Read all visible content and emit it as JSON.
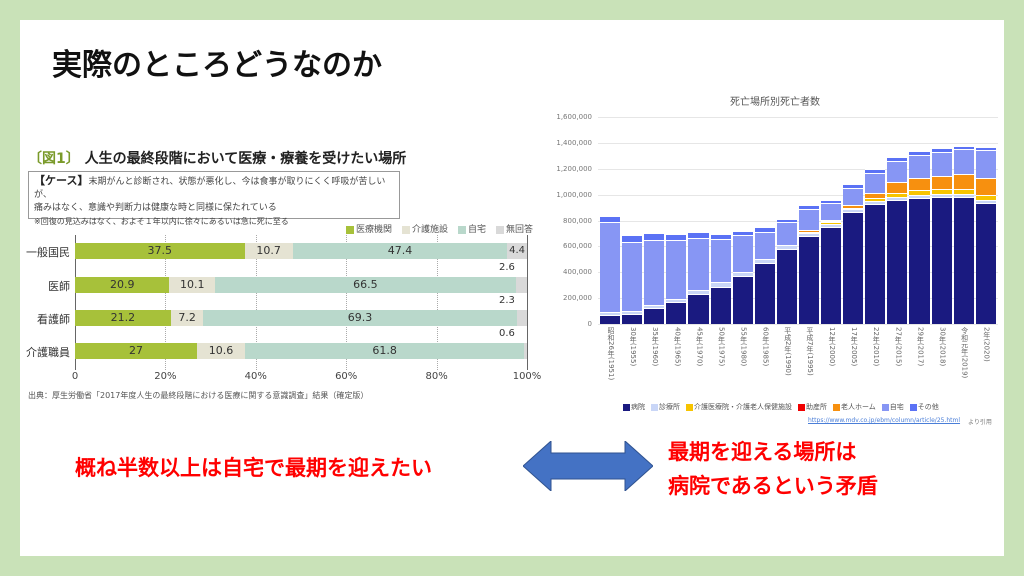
{
  "title": "実際のところどうなのか",
  "left_chart": {
    "fig": "〔図1〕",
    "title": "人生の最終段階において医療・療養を受けたい場所",
    "case_label": "【ケース】",
    "case_text1": "末期がんと診断され、状態が悪化し、今は食事が取りにくく呼吸が苦しいが、",
    "case_text2": "痛みはなく、意識や判断力は健康な時と同様に保たれている",
    "case_note": "※回復の見込みはなく、およそ１年以内に徐々にあるいは急に死に至る",
    "source": "出典：厚生労働省「2017年度人生の最終段階における医療に関する意識調査」結果（確定版）",
    "chart_data": {
      "type": "bar",
      "orientation": "horizontal",
      "stacked": true,
      "categories": [
        "一般国民",
        "医師",
        "看護師",
        "介護職員"
      ],
      "series": [
        {
          "name": "医療機関",
          "color": "#a7c13a",
          "values": [
            37.5,
            20.9,
            21.2,
            27.0
          ]
        },
        {
          "name": "介護施設",
          "color": "#e5e3d3",
          "values": [
            10.7,
            10.1,
            7.2,
            10.6
          ]
        },
        {
          "name": "自宅",
          "color": "#b9d8cb",
          "values": [
            47.4,
            66.5,
            69.3,
            61.8
          ]
        },
        {
          "name": "無回答",
          "color": "#d9d9d9",
          "values": [
            4.4,
            2.6,
            2.3,
            0.6
          ]
        }
      ],
      "xticks": [
        "0",
        "20%",
        "40%",
        "60%",
        "80%",
        "100%"
      ],
      "xlim": [
        0,
        100
      ]
    }
  },
  "right_chart": {
    "chart_data": {
      "type": "bar",
      "stacked": true,
      "title": "死亡場所別死亡者数",
      "ylim": [
        0,
        1600000
      ],
      "yticks": [
        "0",
        "200,000",
        "400,000",
        "600,000",
        "800,000",
        "1,000,000",
        "1,200,000",
        "1,400,000",
        "1,600,000"
      ],
      "categories": [
        "昭和26年(1951)",
        "30年(1955)",
        "35年(1960)",
        "40年(1965)",
        "45年(1970)",
        "50年(1975)",
        "55年(1980)",
        "60年(1985)",
        "平成2年(1990)",
        "平成7年(1995)",
        "12年(2000)",
        "17年(2005)",
        "22年(2010)",
        "27年(2015)",
        "29年(2017)",
        "30年(2018)",
        "令和元年(2019)",
        "2年(2020)"
      ],
      "series": [
        {
          "name": "病院",
          "color": "#1a1a80",
          "values": [
            69000,
            79000,
            121000,
            169000,
            231000,
            287000,
            372000,
            469000,
            582000,
            679000,
            749000,
            862000,
            928000,
            962000,
            977000,
            979000,
            985000,
            933000
          ]
        },
        {
          "name": "診療所",
          "color": "#c9d6f7",
          "values": [
            26000,
            24000,
            25000,
            23000,
            31000,
            34000,
            33000,
            31000,
            31000,
            26000,
            25000,
            28000,
            26000,
            23000,
            23000,
            24000,
            20000,
            26000
          ]
        },
        {
          "name": "介護医療院・介護老人保健施設",
          "color": "#f7c400",
          "values": [
            0,
            0,
            0,
            0,
            0,
            0,
            0,
            0,
            0,
            5000,
            11000,
            10000,
            18000,
            28000,
            33000,
            38000,
            41000,
            41000
          ]
        },
        {
          "name": "助産所",
          "color": "#f00000",
          "values": [
            0,
            0,
            0,
            0,
            0,
            0,
            0,
            0,
            0,
            0,
            0,
            0,
            0,
            0,
            0,
            0,
            0,
            0
          ]
        },
        {
          "name": "老人ホーム",
          "color": "#f7900f",
          "values": [
            0,
            0,
            0,
            0,
            0,
            0,
            0,
            0,
            0,
            13000,
            15000,
            21000,
            43000,
            82000,
            98000,
            105000,
            113000,
            126000
          ]
        },
        {
          "name": "自宅",
          "color": "#8796f4",
          "values": [
            692000,
            533000,
            505000,
            459000,
            405000,
            338000,
            280000,
            213000,
            179000,
            169000,
            133000,
            130000,
            152000,
            164000,
            179000,
            185000,
            190000,
            218000
          ]
        },
        {
          "name": "その他",
          "color": "#5b72f5",
          "values": [
            46000,
            54000,
            52000,
            46000,
            41000,
            38000,
            36000,
            36000,
            23000,
            26000,
            26000,
            28000,
            28000,
            28000,
            26000,
            28000,
            28000,
            25000
          ]
        }
      ]
    },
    "source_url": "https://www.mdv.co.jp/ebm/column/article/25.html",
    "source_suffix": "より引用"
  },
  "message_left": "概ね半数以上は自宅で最期を迎えたい",
  "message_right_1": "最期を迎える場所は",
  "message_right_2": "病院であるという矛盾",
  "arrow_color": "#4472c4"
}
